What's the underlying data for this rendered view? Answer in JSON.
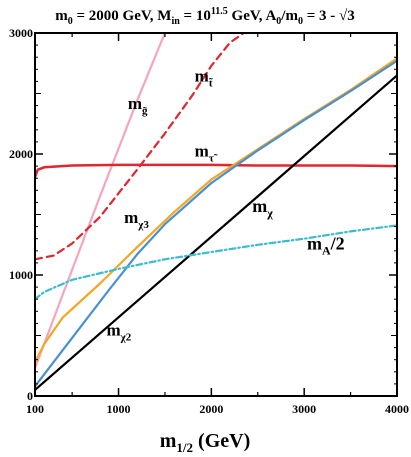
{
  "chart_data": {
    "type": "line",
    "title": {
      "pre": "m",
      "pre_sub": "0",
      "mid1": " = 2000 GeV, M",
      "mid1_sub": "in",
      "mid2": " = 10",
      "mid2_sup": "11.5",
      "mid3": " GeV, A",
      "mid3_sub": "0",
      "mid4": "/m",
      "mid4_sub": "0",
      "post": " = 3 - √3"
    },
    "xlabel": {
      "base": "m",
      "sub": "1/2",
      "unit": " (GeV)"
    },
    "ylabel": "",
    "xlim": [
      100,
      4000
    ],
    "ylim": [
      0,
      3000
    ],
    "x_ticks": [
      100,
      1000,
      2000,
      3000,
      4000
    ],
    "x_tick_labels": [
      "100",
      "1000",
      "2000",
      "3000",
      "4000"
    ],
    "y_ticks": [
      0,
      1000,
      2000,
      3000
    ],
    "y_tick_labels": [
      "0",
      "1000",
      "2000",
      "3000"
    ],
    "grid": false,
    "series": [
      {
        "id": "gluino",
        "color": "#f4a6bf",
        "dash": "solid",
        "x": [
          100,
          400,
          800,
          1200,
          1500
        ],
        "y": [
          230,
          840,
          1650,
          2440,
          3000
        ]
      },
      {
        "id": "stop",
        "color": "#e0262e",
        "dash": "dashed",
        "x": [
          100,
          300,
          500,
          800,
          1200,
          1500,
          1800,
          2000,
          2200,
          2350
        ],
        "y": [
          1130,
          1160,
          1260,
          1480,
          1870,
          2170,
          2490,
          2730,
          2920,
          3000
        ]
      },
      {
        "id": "stau",
        "color": "#e0262e",
        "dash": "solid",
        "x": [
          100,
          130,
          200,
          500,
          1000,
          1500,
          2000,
          2500,
          3000,
          3500,
          4000
        ],
        "y": [
          1810,
          1870,
          1890,
          1905,
          1910,
          1910,
          1910,
          1905,
          1905,
          1905,
          1900
        ]
      },
      {
        "id": "chi3",
        "color": "#f5a622",
        "dash": "solid",
        "x": [
          100,
          200,
          400,
          800,
          1200,
          1600,
          2000,
          2500,
          3000,
          3500,
          4000
        ],
        "y": [
          280,
          430,
          650,
          930,
          1230,
          1520,
          1790,
          2040,
          2290,
          2530,
          2790
        ]
      },
      {
        "id": "chi2",
        "color": "#4a8fd0",
        "dash": "solid",
        "x": [
          100,
          300,
          600,
          900,
          1200,
          1500,
          2000,
          2500,
          3000,
          3500,
          4000
        ],
        "y": [
          80,
          280,
          580,
          880,
          1170,
          1420,
          1760,
          2030,
          2280,
          2520,
          2770
        ]
      },
      {
        "id": "chi",
        "color": "#000000",
        "dash": "solid",
        "x": [
          100,
          4000
        ],
        "y": [
          50,
          2650
        ]
      },
      {
        "id": "mA2",
        "color": "#3bbcd0",
        "dash": "dashdot",
        "x": [
          100,
          200,
          500,
          1000,
          1500,
          2000,
          2500,
          3000,
          3500,
          4000
        ],
        "y": [
          800,
          860,
          960,
          1050,
          1130,
          1190,
          1250,
          1300,
          1360,
          1410
        ]
      }
    ],
    "labels": [
      {
        "id": "label-gluino",
        "base": "m",
        "sub": "g̃",
        "sup": "",
        "x": 1100,
        "y": 2370,
        "size": 17
      },
      {
        "id": "label-stop",
        "base": "m",
        "sub": "t̃",
        "sup": "",
        "x": 1820,
        "y": 2600,
        "size": 17
      },
      {
        "id": "label-stau",
        "base": "m",
        "sub": "τ̃",
        "sup": "",
        "x": 1820,
        "y": 1980,
        "size": 17
      },
      {
        "id": "label-chi3",
        "base": "m",
        "sub": "χ3",
        "sup": "",
        "x": 1060,
        "y": 1430,
        "size": 17
      },
      {
        "id": "label-chi2",
        "base": "m",
        "sub": "χ2",
        "sup": "",
        "x": 870,
        "y": 500,
        "size": 17
      },
      {
        "id": "label-chi",
        "base": "m",
        "sub": "χ",
        "sup": "",
        "x": 2440,
        "y": 1520,
        "size": 18
      },
      {
        "id": "label-mA2",
        "base": "m",
        "sub": "A",
        "sup": "",
        "post": "/2",
        "x": 3030,
        "y": 1210,
        "size": 18
      }
    ]
  }
}
